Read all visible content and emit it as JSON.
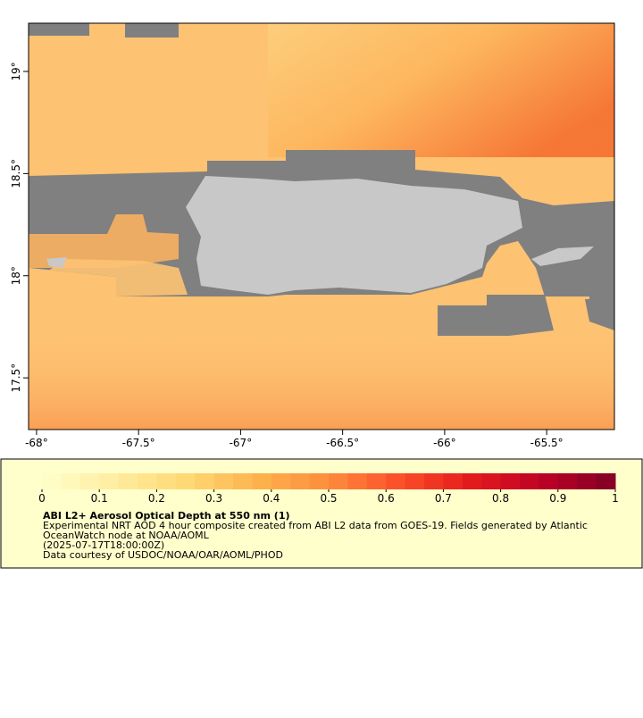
{
  "map": {
    "xlim": [
      -68.039,
      -65.168
    ],
    "ylim": [
      17.247,
      19.236
    ],
    "xticks": [
      {
        "value": -68,
        "label": "-68°"
      },
      {
        "value": -67.5,
        "label": "-67.5°"
      },
      {
        "value": -67,
        "label": "-67°"
      },
      {
        "value": -66.5,
        "label": "-66.5°"
      },
      {
        "value": -66,
        "label": "-66°"
      },
      {
        "value": -65.5,
        "label": "-65.5°"
      }
    ],
    "yticks": [
      {
        "value": 17.5,
        "label": "17.5°"
      },
      {
        "value": 18,
        "label": "18°"
      },
      {
        "value": 18.5,
        "label": "18.5°"
      },
      {
        "value": 19,
        "label": "19°"
      }
    ]
  },
  "colorbar": {
    "lim": [
      0,
      1
    ],
    "segments": 30,
    "palette": [
      "#ffffcc",
      "#ffeda0",
      "#fed976",
      "#feb24c",
      "#fd8d3c",
      "#fc4e2a",
      "#e31a1c",
      "#bd0026",
      "#800026"
    ],
    "ticks": [
      0,
      0.1,
      0.2,
      0.3,
      0.4,
      0.5,
      0.6,
      0.7,
      0.8,
      0.9,
      1
    ]
  },
  "legend": {
    "title": "ABI L2+ Aerosol Optical Depth at 550 nm (1)",
    "lines": [
      "Experimental NRT AOD 4 hour composite created from ABI L2 data from GOES-19. Fields generated by Atlantic",
      "OceanWatch node at NOAA/AOML",
      "(2025-07-17T18:00:00Z)",
      "Data courtesy of USDOC/NOAA/OAR/AOML/PHOD"
    ]
  }
}
